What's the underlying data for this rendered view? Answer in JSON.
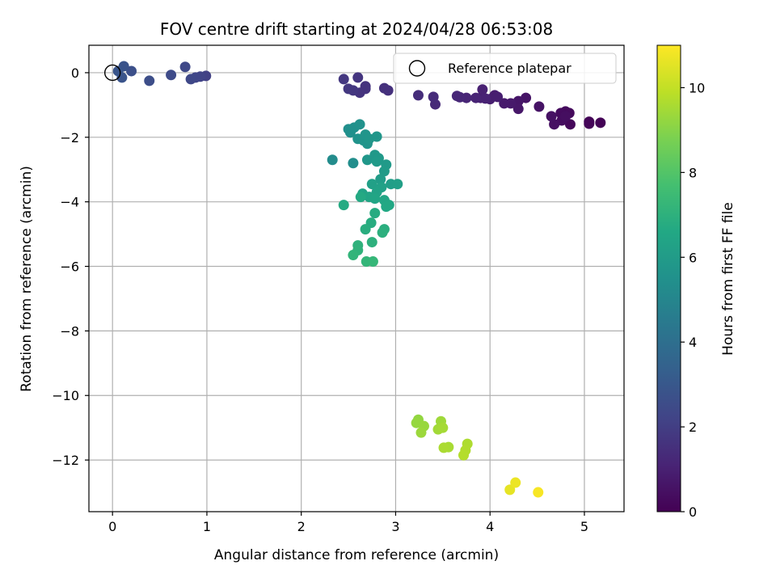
{
  "chart_data": {
    "type": "scatter",
    "title": "FOV centre drift starting at 2024/04/28 06:53:08",
    "xlabel": "Angular distance from reference (arcmin)",
    "ylabel": "Rotation from reference (arcmin)",
    "xlim": [
      -0.25,
      5.42
    ],
    "ylim": [
      -13.6,
      0.85
    ],
    "x_ticks": [
      0,
      1,
      2,
      3,
      4,
      5
    ],
    "y_ticks": [
      0,
      -2,
      -4,
      -6,
      -8,
      -10,
      -12
    ],
    "x_tick_labels": [
      "0",
      "1",
      "2",
      "3",
      "4",
      "5"
    ],
    "y_tick_labels": [
      "0",
      "−2",
      "−4",
      "−6",
      "−8",
      "−10",
      "−12"
    ],
    "grid": true,
    "legend": {
      "position": "top-right",
      "entries": [
        {
          "label": "Reference platepar",
          "marker": "open-circle"
        }
      ]
    },
    "reference_point": {
      "x": 0,
      "y": 0
    },
    "colorbar": {
      "label": "Hours from first FF file",
      "colormap": "viridis",
      "range": [
        0,
        11
      ],
      "ticks": [
        0,
        2,
        4,
        6,
        8,
        10
      ],
      "tick_labels": [
        "0",
        "2",
        "4",
        "6",
        "8",
        "10"
      ]
    },
    "points": [
      {
        "x": 5.17,
        "y": -1.55,
        "t": 0.05
      },
      {
        "x": 5.05,
        "y": -1.52,
        "t": 0.1
      },
      {
        "x": 5.05,
        "y": -1.58,
        "t": 0.12
      },
      {
        "x": 4.85,
        "y": -1.6,
        "t": 0.2
      },
      {
        "x": 4.84,
        "y": -1.25,
        "t": 0.25
      },
      {
        "x": 4.8,
        "y": -1.2,
        "t": 0.3
      },
      {
        "x": 4.75,
        "y": -1.25,
        "t": 0.32
      },
      {
        "x": 4.76,
        "y": -1.48,
        "t": 0.35
      },
      {
        "x": 4.8,
        "y": -1.35,
        "t": 0.4
      },
      {
        "x": 4.68,
        "y": -1.6,
        "t": 0.45
      },
      {
        "x": 4.65,
        "y": -1.35,
        "t": 0.5
      },
      {
        "x": 4.52,
        "y": -1.05,
        "t": 0.55
      },
      {
        "x": 4.38,
        "y": -0.78,
        "t": 0.6
      },
      {
        "x": 4.3,
        "y": -0.88,
        "t": 0.65
      },
      {
        "x": 4.3,
        "y": -1.12,
        "t": 0.7
      },
      {
        "x": 4.22,
        "y": -0.95,
        "t": 0.75
      },
      {
        "x": 4.15,
        "y": -0.95,
        "t": 0.8
      },
      {
        "x": 4.05,
        "y": -0.7,
        "t": 0.85
      },
      {
        "x": 4.0,
        "y": -0.82,
        "t": 0.9
      },
      {
        "x": 4.08,
        "y": -0.75,
        "t": 0.92
      },
      {
        "x": 3.9,
        "y": -0.78,
        "t": 0.95
      },
      {
        "x": 3.92,
        "y": -0.52,
        "t": 1.0
      },
      {
        "x": 3.95,
        "y": -0.8,
        "t": 1.05
      },
      {
        "x": 3.85,
        "y": -0.78,
        "t": 1.1
      },
      {
        "x": 3.75,
        "y": -0.78,
        "t": 1.15
      },
      {
        "x": 3.68,
        "y": -0.76,
        "t": 1.2
      },
      {
        "x": 3.65,
        "y": -0.72,
        "t": 1.22
      },
      {
        "x": 3.42,
        "y": -0.98,
        "t": 1.3
      },
      {
        "x": 3.4,
        "y": -0.75,
        "t": 1.35
      },
      {
        "x": 3.24,
        "y": -0.7,
        "t": 1.4
      },
      {
        "x": 2.92,
        "y": -0.55,
        "t": 1.5
      },
      {
        "x": 2.88,
        "y": -0.48,
        "t": 1.55
      },
      {
        "x": 2.68,
        "y": -0.42,
        "t": 1.6
      },
      {
        "x": 2.68,
        "y": -0.5,
        "t": 1.62
      },
      {
        "x": 2.62,
        "y": -0.62,
        "t": 1.65
      },
      {
        "x": 2.6,
        "y": -0.15,
        "t": 1.7
      },
      {
        "x": 2.55,
        "y": -0.55,
        "t": 1.75
      },
      {
        "x": 2.5,
        "y": -0.5,
        "t": 1.78
      },
      {
        "x": 2.45,
        "y": -0.2,
        "t": 1.8
      },
      {
        "x": 0.99,
        "y": -0.1,
        "t": 2.1
      },
      {
        "x": 0.93,
        "y": -0.12,
        "t": 2.2
      },
      {
        "x": 0.88,
        "y": -0.15,
        "t": 2.3
      },
      {
        "x": 0.83,
        "y": -0.2,
        "t": 2.35
      },
      {
        "x": 0.77,
        "y": 0.18,
        "t": 2.4
      },
      {
        "x": 0.62,
        "y": -0.07,
        "t": 2.5
      },
      {
        "x": 0.39,
        "y": -0.25,
        "t": 2.6
      },
      {
        "x": 0.2,
        "y": 0.05,
        "t": 2.7
      },
      {
        "x": 0.12,
        "y": 0.2,
        "t": 2.8
      },
      {
        "x": 0.1,
        "y": -0.15,
        "t": 2.85
      },
      {
        "x": 0.06,
        "y": 0.05,
        "t": 2.9
      },
      {
        "x": 2.33,
        "y": -2.7,
        "t": 5.3
      },
      {
        "x": 2.55,
        "y": -2.8,
        "t": 5.35
      },
      {
        "x": 2.5,
        "y": -1.75,
        "t": 5.4
      },
      {
        "x": 2.52,
        "y": -1.85,
        "t": 5.45
      },
      {
        "x": 2.56,
        "y": -1.7,
        "t": 5.5
      },
      {
        "x": 2.62,
        "y": -1.6,
        "t": 5.55
      },
      {
        "x": 2.6,
        "y": -2.05,
        "t": 5.6
      },
      {
        "x": 2.66,
        "y": -2.1,
        "t": 5.62
      },
      {
        "x": 2.7,
        "y": -2.2,
        "t": 5.65
      },
      {
        "x": 2.68,
        "y": -1.92,
        "t": 5.7
      },
      {
        "x": 2.72,
        "y": -2.05,
        "t": 5.72
      },
      {
        "x": 2.8,
        "y": -1.98,
        "t": 5.75
      },
      {
        "x": 2.7,
        "y": -2.7,
        "t": 5.8
      },
      {
        "x": 2.78,
        "y": -2.55,
        "t": 5.85
      },
      {
        "x": 2.82,
        "y": -2.65,
        "t": 5.9
      },
      {
        "x": 2.8,
        "y": -2.75,
        "t": 5.92
      },
      {
        "x": 2.9,
        "y": -2.85,
        "t": 5.95
      },
      {
        "x": 2.88,
        "y": -3.05,
        "t": 6.0
      },
      {
        "x": 2.84,
        "y": -3.3,
        "t": 6.05
      },
      {
        "x": 2.95,
        "y": -3.45,
        "t": 6.1
      },
      {
        "x": 3.02,
        "y": -3.45,
        "t": 6.15
      },
      {
        "x": 2.75,
        "y": -3.45,
        "t": 6.2
      },
      {
        "x": 2.85,
        "y": -3.55,
        "t": 6.25
      },
      {
        "x": 2.8,
        "y": -3.7,
        "t": 6.3
      },
      {
        "x": 2.65,
        "y": -3.75,
        "t": 6.35
      },
      {
        "x": 2.72,
        "y": -3.85,
        "t": 6.4
      },
      {
        "x": 2.78,
        "y": -3.9,
        "t": 6.45
      },
      {
        "x": 2.88,
        "y": -3.95,
        "t": 6.5
      },
      {
        "x": 2.93,
        "y": -4.1,
        "t": 6.55
      },
      {
        "x": 2.9,
        "y": -4.15,
        "t": 6.6
      },
      {
        "x": 2.63,
        "y": -3.85,
        "t": 6.65
      },
      {
        "x": 2.45,
        "y": -4.1,
        "t": 6.7
      },
      {
        "x": 2.78,
        "y": -4.35,
        "t": 6.75
      },
      {
        "x": 2.74,
        "y": -4.65,
        "t": 6.8
      },
      {
        "x": 2.68,
        "y": -4.85,
        "t": 6.85
      },
      {
        "x": 2.88,
        "y": -4.85,
        "t": 6.9
      },
      {
        "x": 2.86,
        "y": -4.95,
        "t": 6.95
      },
      {
        "x": 2.75,
        "y": -5.25,
        "t": 7.0
      },
      {
        "x": 2.6,
        "y": -5.35,
        "t": 7.05
      },
      {
        "x": 2.6,
        "y": -5.5,
        "t": 7.1
      },
      {
        "x": 2.55,
        "y": -5.65,
        "t": 7.15
      },
      {
        "x": 2.69,
        "y": -5.85,
        "t": 7.2
      },
      {
        "x": 2.76,
        "y": -5.85,
        "t": 7.25
      },
      {
        "x": 3.24,
        "y": -10.75,
        "t": 9.2
      },
      {
        "x": 3.22,
        "y": -10.85,
        "t": 9.25
      },
      {
        "x": 3.3,
        "y": -10.95,
        "t": 9.3
      },
      {
        "x": 3.27,
        "y": -11.15,
        "t": 9.35
      },
      {
        "x": 3.48,
        "y": -10.8,
        "t": 9.4
      },
      {
        "x": 3.45,
        "y": -11.05,
        "t": 9.45
      },
      {
        "x": 3.5,
        "y": -11.0,
        "t": 9.5
      },
      {
        "x": 3.56,
        "y": -11.6,
        "t": 9.55
      },
      {
        "x": 3.51,
        "y": -11.62,
        "t": 9.6
      },
      {
        "x": 3.76,
        "y": -11.5,
        "t": 9.65
      },
      {
        "x": 3.74,
        "y": -11.7,
        "t": 9.7
      },
      {
        "x": 3.72,
        "y": -11.85,
        "t": 9.75
      },
      {
        "x": 4.21,
        "y": -12.92,
        "t": 10.6
      },
      {
        "x": 4.27,
        "y": -12.7,
        "t": 10.7
      },
      {
        "x": 4.51,
        "y": -13.0,
        "t": 10.9
      }
    ]
  }
}
